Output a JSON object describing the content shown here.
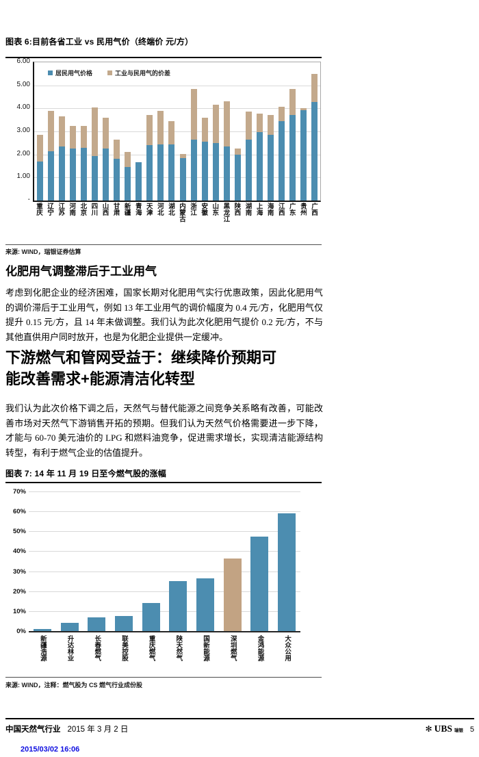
{
  "figure6": {
    "title": "图表 6:目前各省工业 vs 民用气价（终端价 元/方）",
    "source": "来源: WIND，瑞银证券估算"
  },
  "section1": {
    "heading": "化肥用气调整滞后于工业用气",
    "body": "考虑到化肥企业的经济困难，国家长期对化肥用气实行优惠政策，因此化肥用气的调价滞后于工业用气，例如 13 年工业用气的调价幅度为 0.4 元/方，化肥用气仅提升 0.15 元/方，且 14 年未做调整。我们认为此次化肥用气提价 0.2 元/方，不与其他直供用户同时放开，也是为化肥企业提供一定缓冲。"
  },
  "section2": {
    "heading": "下游燃气和管网受益于：继续降价预期可能改善需求+能源清洁化转型",
    "body": "我们认为此次价格下调之后，天然气与替代能源之间竞争关系略有改善，可能改善市场对天然气下游销售开拓的预期。但我们认为天然气价格需要进一步下降，才能与 60-70 美元油价的 LPG 和燃料油竞争，促进需求增长，实现清洁能源结构转型，有利于燃气企业的估值提升。"
  },
  "figure7": {
    "title": "图表 7: 14 年 11 月 19 日至今燃气股的涨幅",
    "source": "来源: WIND，注释：燃气股为 CS 燃气行业成份股"
  },
  "footer": {
    "report_title": "中国天然气行业",
    "date": "2015 年 3 月 2 日",
    "brand": "UBS",
    "brand_cn": "瑞银",
    "page_number": "5",
    "timestamp": "2015/03/02 16:06"
  },
  "chart_data": [
    {
      "id": "fig6",
      "type": "bar",
      "stacked": true,
      "title": "图表 6:目前各省工业 vs 民用气价（终端价 元/方）",
      "categories": [
        "重庆",
        "辽宁",
        "江苏",
        "河南",
        "北京",
        "四川",
        "山西",
        "甘肃",
        "新疆",
        "青海",
        "天津",
        "河北",
        "湖北",
        "内蒙古",
        "浙江",
        "安徽",
        "山东",
        "黑龙江",
        "陕西",
        "湖南",
        "上海",
        "海南",
        "江西",
        "广东",
        "贵州",
        "广西"
      ],
      "series": [
        {
          "name": "居民用气价格",
          "color": "#4c8db0",
          "values": [
            1.7,
            2.15,
            2.35,
            2.25,
            2.28,
            1.93,
            2.26,
            1.8,
            1.45,
            1.67,
            2.42,
            2.45,
            2.45,
            1.85,
            2.65,
            2.55,
            2.5,
            2.35,
            2.0,
            2.65,
            2.98,
            2.85,
            3.45,
            3.7,
            3.92,
            4.28
          ]
        },
        {
          "name": "工业与民用气的价差",
          "color": "#c3a98c",
          "values": [
            1.15,
            1.75,
            1.3,
            1.0,
            0.97,
            2.12,
            1.34,
            0.83,
            0.65,
            0.0,
            1.28,
            1.45,
            1.0,
            0.18,
            2.2,
            1.03,
            1.65,
            1.95,
            0.25,
            1.2,
            0.79,
            0.87,
            0.63,
            1.15,
            0.08,
            1.22
          ]
        }
      ],
      "ylim": [
        0,
        6
      ],
      "yticks": [
        "6.00",
        "5.00",
        "4.00",
        "3.00",
        "2.00",
        "1.00",
        "-"
      ],
      "ytick_values": [
        6,
        5,
        4,
        3,
        2,
        1,
        0
      ],
      "grid": true,
      "legend_position": "top-inside"
    },
    {
      "id": "fig7",
      "type": "bar",
      "title": "图表 7: 14 年 11 月 19 日至今燃气股的涨幅",
      "categories": [
        "新疆浩源",
        "升达林业",
        "长春燃气",
        "联美控股",
        "重庆燃气",
        "陕天然气",
        "国新能源",
        "深圳燃气",
        "金鸿能源",
        "大众公用"
      ],
      "values": [
        1,
        4,
        7,
        7.5,
        14,
        25,
        26.5,
        36.5,
        47.5,
        59
      ],
      "unit": "%",
      "bar_color": "#4c8db0",
      "highlight_index": 7,
      "highlight_color": "#c2a383",
      "ylim": [
        0,
        70
      ],
      "yticks": [
        "70%",
        "60%",
        "50%",
        "40%",
        "30%",
        "20%",
        "10%",
        "0%"
      ],
      "ytick_values": [
        70,
        60,
        50,
        40,
        30,
        20,
        10,
        0
      ],
      "grid": true,
      "legend_position": "none"
    }
  ]
}
